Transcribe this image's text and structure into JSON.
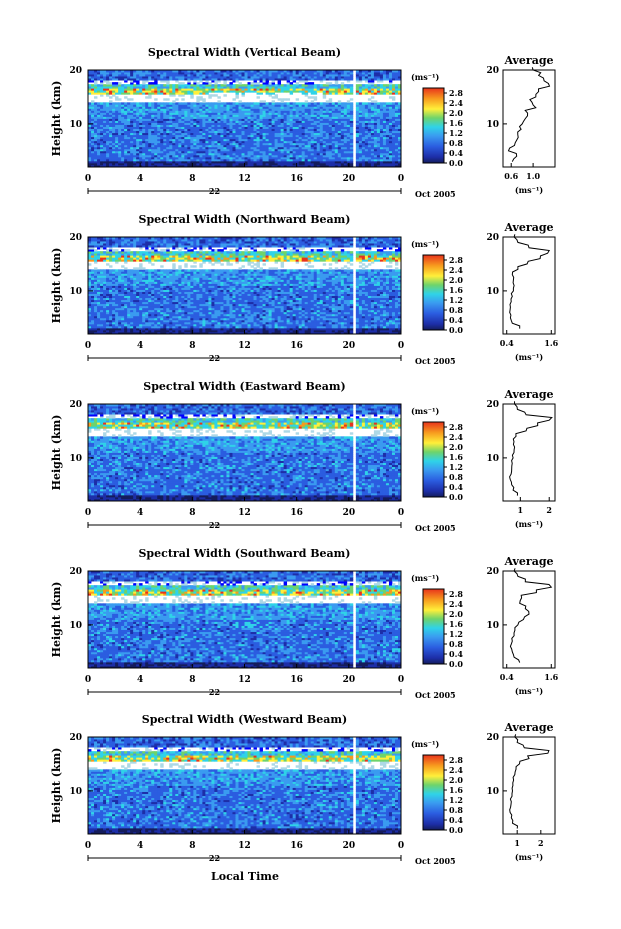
{
  "figure": {
    "xlabel": "Local Time",
    "day_label": "22",
    "date_label": "Oct 2005",
    "ylabel": "Height (km)",
    "units_label": "(ms⁻¹)",
    "avg_title": "Average",
    "avg_xlabel": "(ms⁻¹)",
    "x_ticks": [
      "0",
      "4",
      "8",
      "12",
      "16",
      "20",
      "0"
    ],
    "y_ticks": [
      "20",
      "10"
    ],
    "colorbar_ticks": [
      "2.8",
      "2.4",
      "2.0",
      "1.6",
      "1.2",
      "0.8",
      "0.4",
      "0.0"
    ],
    "colors": {
      "red": "#e8331c",
      "orange": "#f79a1e",
      "yellow": "#ffef3a",
      "green": "#6ed36b",
      "cyan": "#2fd3e8",
      "lightblue": "#3a9bf0",
      "blue": "#2b5de0",
      "navy": "#1d2ea8",
      "dark": "#141c5c"
    }
  },
  "chart_data": [
    {
      "type": "heatmap",
      "title": "Spectral Width (Vertical Beam)",
      "xlim": [
        0,
        24
      ],
      "ylim": [
        2,
        20
      ],
      "colorbar_range": [
        0.0,
        3.0
      ],
      "avg_profile": {
        "xticks": [
          "0.6",
          "1.0"
        ],
        "xlim": [
          0.45,
          1.4
        ],
        "height": [
          3,
          4,
          5,
          6,
          7,
          8,
          9,
          10,
          11,
          12,
          13,
          14,
          15,
          16,
          17,
          18,
          19,
          20
        ],
        "value": [
          0.62,
          0.7,
          0.55,
          0.66,
          0.7,
          0.72,
          0.78,
          0.8,
          0.86,
          0.9,
          1.05,
          0.98,
          1.05,
          1.1,
          1.3,
          1.2,
          1.1,
          1.0
        ]
      }
    },
    {
      "type": "heatmap",
      "title": "Spectral Width (Northward Beam)",
      "xlim": [
        0,
        24
      ],
      "ylim": [
        2,
        20
      ],
      "colorbar_range": [
        0.0,
        3.0
      ],
      "avg_profile": {
        "xticks": [
          "0.4",
          "1.6"
        ],
        "xlim": [
          0.3,
          1.7
        ],
        "height": [
          3,
          4,
          5,
          6,
          7,
          8,
          9,
          10,
          11,
          12,
          13,
          14,
          15,
          16,
          17,
          18,
          19,
          20
        ],
        "value": [
          0.75,
          0.55,
          0.5,
          0.48,
          0.5,
          0.52,
          0.55,
          0.58,
          0.6,
          0.58,
          0.55,
          0.7,
          0.95,
          1.3,
          1.5,
          1.0,
          0.7,
          0.6
        ]
      }
    },
    {
      "type": "heatmap",
      "title": "Spectral Width (Eastward Beam)",
      "xlim": [
        0,
        24
      ],
      "ylim": [
        2,
        20
      ],
      "colorbar_range": [
        0.0,
        3.0
      ],
      "avg_profile": {
        "xticks": [
          "1",
          "2"
        ],
        "xlim": [
          0.4,
          2.2
        ],
        "height": [
          3,
          4,
          5,
          6,
          7,
          8,
          9,
          10,
          11,
          12,
          13,
          14,
          15,
          16,
          17,
          18,
          19,
          20
        ],
        "value": [
          0.9,
          0.75,
          0.7,
          0.65,
          0.68,
          0.7,
          0.72,
          0.75,
          0.78,
          0.8,
          0.78,
          0.85,
          1.2,
          1.6,
          2.0,
          1.2,
          0.9,
          0.8
        ]
      }
    },
    {
      "type": "heatmap",
      "title": "Spectral Width (Southward Beam)",
      "xlim": [
        0,
        24
      ],
      "ylim": [
        2,
        20
      ],
      "colorbar_range": [
        0.0,
        3.0
      ],
      "avg_profile": {
        "xticks": [
          "0.4",
          "1.6"
        ],
        "xlim": [
          0.3,
          1.7
        ],
        "height": [
          3,
          4,
          5,
          6,
          7,
          8,
          9,
          10,
          11,
          12,
          13,
          14,
          15,
          16,
          17,
          18,
          19,
          20
        ],
        "value": [
          0.75,
          0.6,
          0.55,
          0.5,
          0.55,
          0.6,
          0.62,
          0.7,
          0.85,
          1.0,
          0.9,
          0.75,
          0.8,
          1.2,
          1.6,
          0.9,
          0.7,
          0.6
        ]
      }
    },
    {
      "type": "heatmap",
      "title": "Spectral Width (Westward Beam)",
      "xlim": [
        0,
        24
      ],
      "ylim": [
        2,
        20
      ],
      "colorbar_range": [
        0.0,
        3.0
      ],
      "avg_profile": {
        "xticks": [
          "1",
          "2"
        ],
        "xlim": [
          0.4,
          2.6
        ],
        "height": [
          3,
          4,
          5,
          6,
          7,
          8,
          9,
          10,
          11,
          12,
          13,
          14,
          15,
          16,
          17,
          18,
          19,
          20
        ],
        "value": [
          1.0,
          0.8,
          0.75,
          0.7,
          0.72,
          0.75,
          0.78,
          0.8,
          0.82,
          0.85,
          0.9,
          0.95,
          1.1,
          1.5,
          2.3,
          1.3,
          1.0,
          0.9
        ]
      }
    }
  ]
}
